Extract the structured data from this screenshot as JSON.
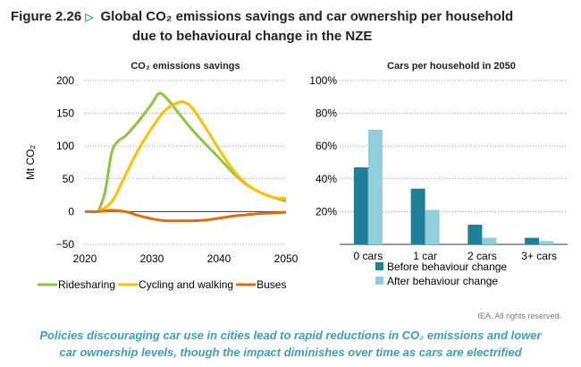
{
  "figure": {
    "number": "Figure 2.26",
    "title_line1": "Global CO₂ emissions savings and car ownership per household",
    "title_line2": "due to behavioural change in the NZE",
    "credit": "IEA. All rights reserved.",
    "caption_line1": "Policies discouraging car use in cities lead to rapid reductions in CO₂ emissions and lower",
    "caption_line2": "car ownership levels, though the impact diminishes over time as cars are electrified"
  },
  "colors": {
    "ridesharing": "#8cc63f",
    "cycling": "#ffc000",
    "buses": "#e36c0a",
    "before": "#1f7f95",
    "after": "#92cddc",
    "accent": "#3a9fb5"
  },
  "chart_data": [
    {
      "type": "line",
      "title": "CO₂ emissions savings",
      "ylabel": "Mt CO₂",
      "xlim": [
        2020,
        2050
      ],
      "ylim": [
        -50,
        200
      ],
      "xticks": [
        2020,
        2030,
        2040,
        2050
      ],
      "yticks": [
        -50,
        0,
        50,
        100,
        150,
        200
      ],
      "grid": true,
      "legend": "bottom",
      "series": [
        {
          "name": "Ridesharing",
          "x": [
            2022,
            2023,
            2024,
            2025,
            2026,
            2028,
            2030,
            2031,
            2032,
            2034,
            2036,
            2038,
            2040,
            2042,
            2044,
            2046,
            2048,
            2050
          ],
          "y": [
            0,
            30,
            90,
            108,
            115,
            138,
            165,
            180,
            175,
            150,
            125,
            103,
            82,
            60,
            42,
            30,
            22,
            16
          ]
        },
        {
          "name": "Cycling and walking",
          "x": [
            2022,
            2024,
            2026,
            2028,
            2030,
            2032,
            2034,
            2035,
            2036,
            2038,
            2040,
            2042,
            2044,
            2046,
            2048,
            2050
          ],
          "y": [
            0,
            15,
            55,
            95,
            128,
            155,
            167,
            166,
            158,
            128,
            95,
            65,
            43,
            30,
            22,
            20
          ]
        },
        {
          "name": "Buses",
          "x": [
            2020,
            2022,
            2024,
            2026,
            2028,
            2030,
            2032,
            2034,
            2036,
            2038,
            2040,
            2042,
            2044,
            2046,
            2048,
            2050
          ],
          "y": [
            0,
            0,
            2,
            0,
            -6,
            -11,
            -14,
            -14,
            -14,
            -13,
            -10,
            -7,
            -5,
            -3,
            -2,
            -1
          ]
        }
      ]
    },
    {
      "type": "bar",
      "title": "Cars per household in 2050",
      "categories": [
        "0 cars",
        "1 car",
        "2 cars",
        "3+ cars"
      ],
      "ylim": [
        0,
        100
      ],
      "yticks": [
        "20%",
        "40%",
        "60%",
        "80%",
        "100%"
      ],
      "grid": true,
      "legend": "bottom",
      "series": [
        {
          "name": "Before behaviour change",
          "values": [
            47,
            34,
            12,
            4
          ]
        },
        {
          "name": "After behaviour change",
          "values": [
            70,
            21,
            4,
            2
          ]
        }
      ]
    }
  ]
}
